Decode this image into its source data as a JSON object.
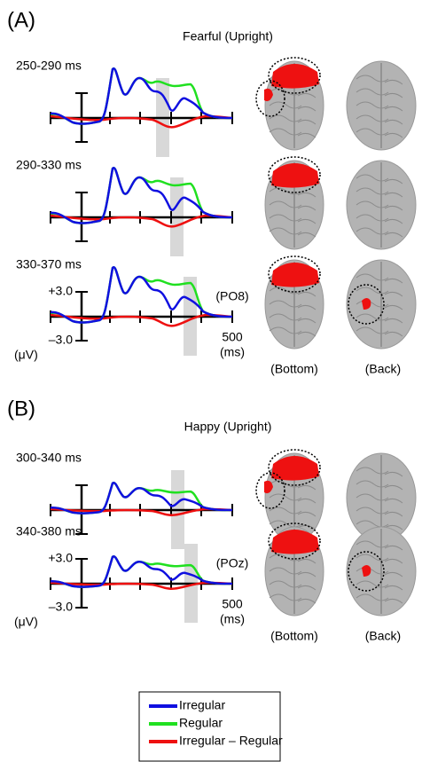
{
  "panels": [
    {
      "label": "(A)",
      "title": "Fearful (Upright)",
      "rows": [
        "250-290 ms",
        "290-330 ms",
        "330-370 ms"
      ],
      "scale_top": "+3.0",
      "scale_bottom": "–3.0",
      "scale_unit": "(μV)",
      "time_end": "500",
      "time_unit": "(ms)",
      "electrode": "(PO8)",
      "view_bottom": "(Bottom)",
      "view_back": "(Back)"
    },
    {
      "label": "(B)",
      "title": "Happy (Upright)",
      "rows": [
        "300-340 ms",
        "340-380 ms"
      ],
      "scale_top": "+3.0",
      "scale_bottom": "–3.0",
      "scale_unit": "(μV)",
      "time_end": "500",
      "time_unit": "(ms)",
      "electrode": "(POz)",
      "view_bottom": "(Bottom)",
      "view_back": "(Back)"
    }
  ],
  "legend": [
    {
      "label": "Irregular",
      "color": "#1010e0"
    },
    {
      "label": "Regular",
      "color": "#20e020"
    },
    {
      "label": "Irregular – Regular",
      "color": "#ee1010"
    }
  ]
}
